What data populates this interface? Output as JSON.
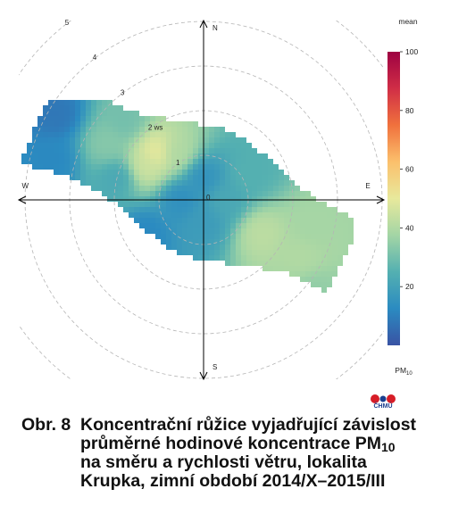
{
  "chart_data": {
    "type": "heatmap",
    "subtype": "polar bivariate plot",
    "directions": {
      "north": "N",
      "east": "E",
      "south": "S",
      "west": "W"
    },
    "radial_ticks": [
      "0",
      "1",
      "2 ws",
      "3",
      "4",
      "5"
    ],
    "radial_range": [
      0,
      5
    ],
    "grid": true,
    "legend": {
      "title": "mean",
      "label_main": "PM",
      "label_sub": "10",
      "ticks": [
        20,
        40,
        60,
        80,
        100
      ],
      "range": [
        0,
        100
      ],
      "colors": [
        "#3953a4",
        "#2b8bc1",
        "#54b0b1",
        "#a3d5a5",
        "#e8e99c",
        "#fbc06c",
        "#f0713d",
        "#d02e46",
        "#9e0142"
      ]
    },
    "cells": [
      {
        "angle": 0,
        "ws": 0.5,
        "value": 15
      },
      {
        "angle": 90,
        "ws": 0.5,
        "value": 22
      },
      {
        "angle": 180,
        "ws": 0.5,
        "value": 18
      },
      {
        "angle": 270,
        "ws": 0.5,
        "value": 14
      },
      {
        "angle": 300,
        "ws": 1.5,
        "value": 45
      },
      {
        "angle": 315,
        "ws": 1.5,
        "value": 50
      },
      {
        "angle": 330,
        "ws": 1.2,
        "value": 40
      },
      {
        "angle": 300,
        "ws": 2.5,
        "value": 33
      },
      {
        "angle": 315,
        "ws": 2.5,
        "value": 30
      },
      {
        "angle": 285,
        "ws": 2.0,
        "value": 22
      },
      {
        "angle": 285,
        "ws": 3.5,
        "value": 12
      },
      {
        "angle": 300,
        "ws": 3.8,
        "value": 8
      },
      {
        "angle": 120,
        "ws": 1.5,
        "value": 42
      },
      {
        "angle": 120,
        "ws": 2.5,
        "value": 40
      },
      {
        "angle": 130,
        "ws": 3.2,
        "value": 35
      },
      {
        "angle": 105,
        "ws": 2.5,
        "value": 38
      },
      {
        "angle": 240,
        "ws": 1.5,
        "value": 12
      },
      {
        "angle": 60,
        "ws": 1.2,
        "value": 25
      }
    ]
  },
  "logo": {
    "text": "ČHMÚ"
  },
  "caption": {
    "label": "Obr. 8",
    "line1": "Koncentrační růžice vyjadřující závislost",
    "line2_pre": "průměrné hodinové koncentrace PM",
    "line2_sub": "10",
    "line3": "na směru a rychlosti větru, lokalita",
    "line4": "Krupka, zimní období 2014/X–2015/III"
  },
  "colors": {
    "axis": "#000000",
    "grid": "#b5b5b5",
    "brand_red": "#d71d27",
    "brand_blue": "#1c3f8f"
  }
}
